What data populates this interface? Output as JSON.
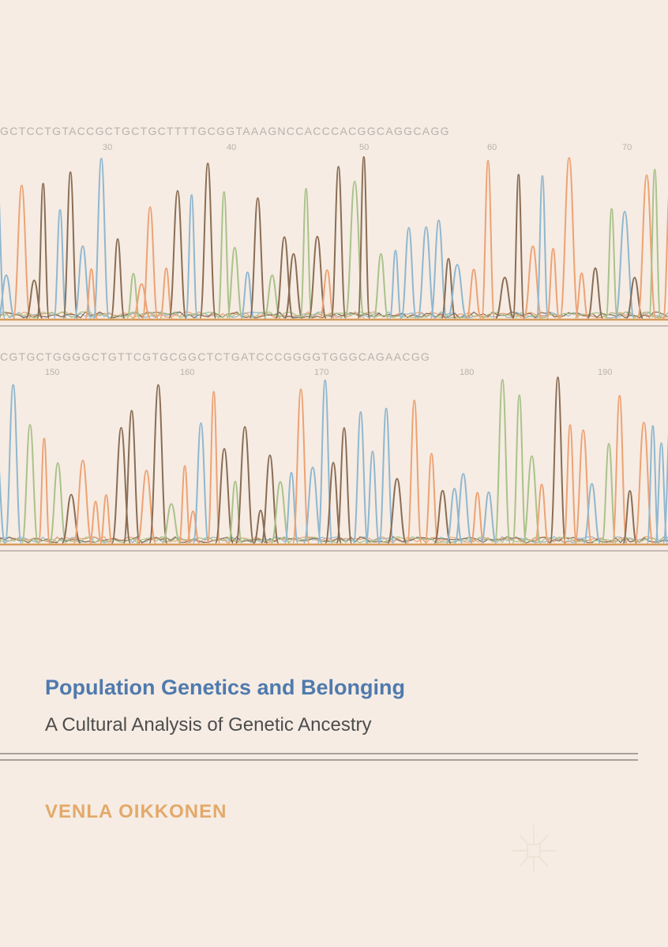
{
  "cover": {
    "title": "Population Genetics and Belonging",
    "subtitle": "A Cultural Analysis of Genetic Ancestry",
    "author": "VENLA OIKKONEN"
  },
  "trace_top": {
    "sequence": "GCTCCTGTACCGCTGCTGCTTTTGCGGTAAAGNCCACCCACGGCAGGCAGG",
    "numbers": [
      "30",
      "40",
      "50",
      "60",
      "70"
    ]
  },
  "trace_bottom": {
    "sequence": "CGTGCTGGGGCTGTTCGTGCGGCTCTGATCCCGGGGTGGGCAGAACGG",
    "numbers": [
      "150",
      "160",
      "170",
      "180",
      "190"
    ]
  },
  "colors": {
    "background": "#f6ece3",
    "title": "#4f7aad",
    "author": "#e3a96a",
    "trace_blue": "#8fb7d0",
    "trace_orange": "#eda274",
    "trace_brown": "#8a6d55",
    "trace_green": "#a9c28a",
    "baseline": "#d49b5e"
  },
  "logo": {
    "icon": "palgrave-sun-icon"
  }
}
